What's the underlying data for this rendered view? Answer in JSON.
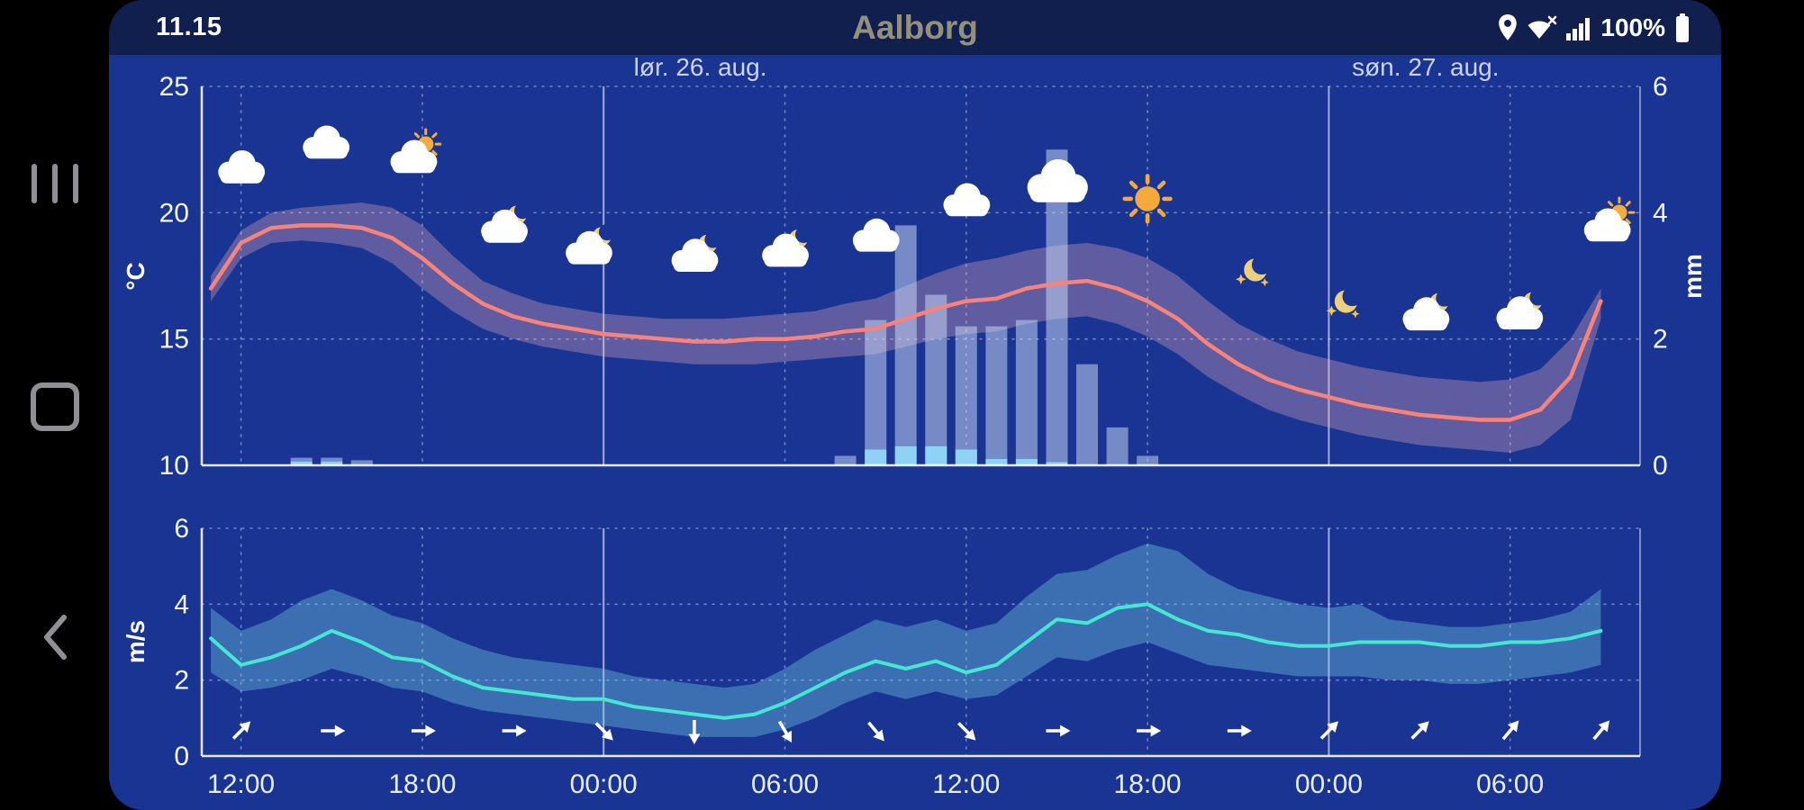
{
  "status_bar": {
    "time": "11.15",
    "title": "Aalborg",
    "battery_percent": "100%",
    "icons": [
      "location",
      "wifi-limited",
      "signal-strength",
      "battery-full"
    ]
  },
  "nav_buttons": [
    "recents",
    "home",
    "back"
  ],
  "colors": {
    "background": "#1a3494",
    "status_bar": "#111f4e",
    "title": "#93907e",
    "temp_line": "#f8837a",
    "temp_band": "rgba(244,176,190,0.32)",
    "precip_bar": "rgba(208,223,250,0.5)",
    "precip_min_bar": "#8fd7f8",
    "wind_line": "#45e6d2",
    "wind_band": "rgba(115,205,228,0.38)",
    "grid": "rgba(255,255,255,0.4)",
    "axis_text": "#f2f4fb"
  },
  "chart_data": [
    {
      "type": "line+bar",
      "title": "Meteogram temperature and precipitation",
      "date_labels": [
        {
          "label": "lør. 26. aug.",
          "t": 27.2
        },
        {
          "label": "søn. 27. aug.",
          "t": 51.2
        }
      ],
      "ylabel_left": "°C",
      "ylabel_right": "mm",
      "yticks_left": [
        25,
        20,
        15,
        10
      ],
      "yticks_right": [
        6,
        4,
        2,
        0
      ],
      "ylim_left": [
        10,
        25
      ],
      "ylim_right": [
        0,
        6
      ],
      "hours_start": 11,
      "hours_end": 57,
      "temperature": [
        17.0,
        18.8,
        19.4,
        19.5,
        19.5,
        19.4,
        19.0,
        18.2,
        17.2,
        16.4,
        15.9,
        15.6,
        15.4,
        15.2,
        15.1,
        15.0,
        14.9,
        14.9,
        15.0,
        15.0,
        15.1,
        15.3,
        15.4,
        15.8,
        16.2,
        16.5,
        16.6,
        17.0,
        17.2,
        17.3,
        17.0,
        16.5,
        15.8,
        14.8,
        14.0,
        13.4,
        13.0,
        12.7,
        12.4,
        12.2,
        12.0,
        11.9,
        11.8,
        11.8,
        12.2,
        13.5,
        16.5
      ],
      "temperature_max": [
        17.5,
        19.3,
        20.0,
        20.2,
        20.3,
        20.4,
        20.2,
        19.5,
        18.3,
        17.3,
        16.8,
        16.4,
        16.2,
        16.0,
        15.9,
        15.8,
        15.8,
        15.8,
        15.9,
        16.0,
        16.1,
        16.4,
        16.6,
        17.1,
        17.6,
        18.0,
        18.2,
        18.5,
        18.7,
        18.8,
        18.6,
        18.2,
        17.5,
        16.5,
        15.6,
        15.0,
        14.5,
        14.2,
        13.9,
        13.7,
        13.5,
        13.4,
        13.3,
        13.4,
        13.8,
        15.0,
        17.0
      ],
      "temperature_min": [
        16.5,
        18.2,
        18.8,
        18.9,
        18.8,
        18.6,
        18.0,
        17.0,
        16.1,
        15.4,
        15.0,
        14.7,
        14.5,
        14.3,
        14.2,
        14.1,
        14.0,
        14.0,
        14.0,
        14.1,
        14.2,
        14.3,
        14.4,
        14.7,
        15.0,
        15.2,
        15.3,
        15.6,
        15.8,
        15.9,
        15.6,
        15.1,
        14.4,
        13.5,
        12.8,
        12.2,
        11.8,
        11.5,
        11.2,
        11.0,
        10.8,
        10.7,
        10.6,
        10.5,
        10.8,
        11.8,
        15.8
      ],
      "precipitation": [
        {
          "t": 14,
          "max": 0.12,
          "min": 0.06
        },
        {
          "t": 15,
          "max": 0.12,
          "min": 0.06
        },
        {
          "t": 16,
          "max": 0.08,
          "min": 0
        },
        {
          "t": 32,
          "max": 0.15,
          "min": 0
        },
        {
          "t": 33,
          "max": 2.3,
          "min": 0.25
        },
        {
          "t": 34,
          "max": 3.8,
          "min": 0.3
        },
        {
          "t": 35,
          "max": 2.7,
          "min": 0.3
        },
        {
          "t": 36,
          "max": 2.2,
          "min": 0.25
        },
        {
          "t": 37,
          "max": 2.2,
          "min": 0.1
        },
        {
          "t": 38,
          "max": 2.3,
          "min": 0.1
        },
        {
          "t": 39,
          "max": 5.0,
          "min": 0.05
        },
        {
          "t": 40,
          "max": 1.6,
          "min": 0
        },
        {
          "t": 41,
          "max": 0.6,
          "min": 0
        },
        {
          "t": 42,
          "max": 0.15,
          "min": 0
        }
      ],
      "weather_icons": [
        {
          "t": 12,
          "kind": "cloudy"
        },
        {
          "t": 14.8,
          "kind": "cloudy"
        },
        {
          "t": 17.7,
          "kind": "partly-sunny"
        },
        {
          "t": 20.7,
          "kind": "partly-cloudy-night"
        },
        {
          "t": 23.5,
          "kind": "partly-cloudy-night"
        },
        {
          "t": 27,
          "kind": "partly-cloudy-night"
        },
        {
          "t": 30,
          "kind": "partly-cloudy-night"
        },
        {
          "t": 33,
          "kind": "cloudy"
        },
        {
          "t": 36,
          "kind": "cloudy"
        },
        {
          "t": 39,
          "kind": "cloudy-large"
        },
        {
          "t": 42,
          "kind": "sunny"
        },
        {
          "t": 45.5,
          "kind": "clear-night"
        },
        {
          "t": 48.5,
          "kind": "clear-night"
        },
        {
          "t": 51.2,
          "kind": "partly-cloudy-night"
        },
        {
          "t": 54.3,
          "kind": "partly-cloudy-night"
        },
        {
          "t": 57.2,
          "kind": "partly-sunny"
        }
      ]
    },
    {
      "type": "line",
      "title": "Meteogram wind",
      "ylabel": "m/s",
      "yticks": [
        6,
        4,
        2,
        0
      ],
      "ylim": [
        0,
        6
      ],
      "hours_start": 11,
      "hours_end": 57,
      "wind": [
        3.1,
        2.4,
        2.6,
        2.9,
        3.3,
        3.0,
        2.6,
        2.5,
        2.1,
        1.8,
        1.7,
        1.6,
        1.5,
        1.5,
        1.3,
        1.2,
        1.1,
        1.0,
        1.1,
        1.4,
        1.8,
        2.2,
        2.5,
        2.3,
        2.5,
        2.2,
        2.4,
        3.0,
        3.6,
        3.5,
        3.9,
        4.0,
        3.6,
        3.3,
        3.2,
        3.0,
        2.9,
        2.9,
        3.0,
        3.0,
        3.0,
        2.9,
        2.9,
        3.0,
        3.0,
        3.1,
        3.3
      ],
      "wind_max": [
        3.9,
        3.3,
        3.6,
        4.1,
        4.4,
        4.1,
        3.7,
        3.5,
        3.1,
        2.8,
        2.6,
        2.5,
        2.4,
        2.3,
        2.1,
        2.0,
        1.9,
        1.8,
        1.9,
        2.3,
        2.8,
        3.2,
        3.6,
        3.4,
        3.6,
        3.3,
        3.5,
        4.2,
        4.8,
        4.9,
        5.3,
        5.6,
        5.4,
        4.8,
        4.4,
        4.2,
        4.0,
        3.9,
        4.0,
        3.6,
        3.5,
        3.4,
        3.4,
        3.5,
        3.6,
        3.8,
        4.4
      ],
      "wind_min": [
        2.2,
        1.7,
        1.8,
        2.0,
        2.3,
        2.1,
        1.8,
        1.7,
        1.4,
        1.2,
        1.1,
        1.0,
        0.9,
        0.8,
        0.7,
        0.6,
        0.5,
        0.5,
        0.5,
        0.7,
        1.0,
        1.4,
        1.7,
        1.5,
        1.7,
        1.5,
        1.6,
        2.1,
        2.6,
        2.5,
        2.8,
        3.0,
        2.7,
        2.4,
        2.3,
        2.2,
        2.1,
        2.1,
        2.1,
        2.0,
        2.0,
        1.9,
        1.9,
        2.0,
        2.1,
        2.2,
        2.4
      ],
      "arrows": [
        {
          "t": 12,
          "deg": 45
        },
        {
          "t": 15,
          "deg": 90
        },
        {
          "t": 18,
          "deg": 90
        },
        {
          "t": 21,
          "deg": 90
        },
        {
          "t": 24,
          "deg": 135
        },
        {
          "t": 27,
          "deg": 180
        },
        {
          "t": 30,
          "deg": 150
        },
        {
          "t": 33,
          "deg": 140
        },
        {
          "t": 36,
          "deg": 135
        },
        {
          "t": 39,
          "deg": 90
        },
        {
          "t": 42,
          "deg": 90
        },
        {
          "t": 45,
          "deg": 90
        },
        {
          "t": 48,
          "deg": 45
        },
        {
          "t": 51,
          "deg": 45
        },
        {
          "t": 54,
          "deg": 40
        },
        {
          "t": 57,
          "deg": 40
        }
      ],
      "xticks": [
        {
          "t": 12,
          "label": "12:00"
        },
        {
          "t": 18,
          "label": "18:00"
        },
        {
          "t": 24,
          "label": "00:00",
          "major": true
        },
        {
          "t": 30,
          "label": "06:00"
        },
        {
          "t": 36,
          "label": "12:00"
        },
        {
          "t": 42,
          "label": "18:00"
        },
        {
          "t": 48,
          "label": "00:00",
          "major": true
        },
        {
          "t": 54,
          "label": "06:00"
        }
      ]
    }
  ]
}
